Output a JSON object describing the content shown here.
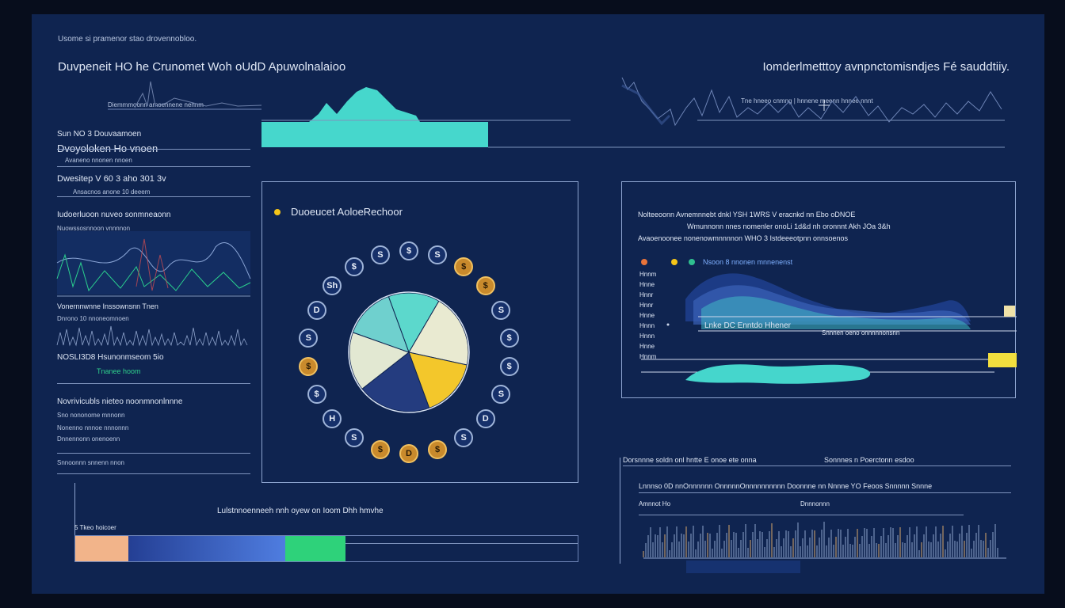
{
  "header": {
    "caption": "Usome si pramenor stao drovennobloo.",
    "title_left": "Duvpeneit HO he Crunomet Woh oUdD Apuwolnalaioo",
    "title_right": "Iomderlmetttoy avnpnctomisndjes Fé sauddtiiy.",
    "mini_labels_left": "Diemmmoonn amoennene nennm",
    "mini_labels_right": "Tne hneeo cnmng   |   hnnene meenn hnnee nnnt"
  },
  "sidebar": {
    "items": [
      {
        "label": "Sun  NO 3  Douvaamoen",
        "accent": "#4a8cd9"
      },
      {
        "label": "Dvoyoloken Ho vnoen"
      },
      {
        "label": "Avaneno nnonen nnoen"
      },
      {
        "label": "Dwesitep V 60 3 aho 301 3v"
      },
      {
        "label": "Ansacnos anone 10 deeem"
      },
      {
        "label": "Iudoerluoon nuveo sonmneaonn"
      },
      {
        "label": "Nuowssosnnoon vnnnnon"
      },
      {
        "label": "Vonernnwnne Inssownsnn Tnen"
      },
      {
        "label": "Dnrono 10 nnoneomnoen"
      },
      {
        "label": "NOSLI3D8 Hsunonmseom 5io"
      },
      {
        "label": "Tnanee hoom"
      },
      {
        "label": "Novrivicubls nieteo noonmnonlnnne"
      },
      {
        "label": "Sno nononome mnnonn"
      },
      {
        "label": "Nonenno nnnoe nnnonnn"
      },
      {
        "label": "Dnnennonn  onenoenn"
      },
      {
        "label": "Snnoonnn snnenn nnon"
      }
    ]
  },
  "pie_panel": {
    "legend": "Duoeucet AoloeRechoor",
    "legend_color": "#f5c518",
    "coins": [
      "$",
      "S",
      "$",
      "$",
      "S",
      "$",
      "$",
      "S",
      "D",
      "S",
      "$",
      "D",
      "$",
      "S",
      "H",
      "$",
      "$",
      "S",
      "D",
      "Sh",
      "$",
      "S"
    ]
  },
  "chart_data": [
    {
      "type": "pie",
      "title": "",
      "values": [
        14,
        20,
        16,
        20,
        16,
        14
      ],
      "colors": [
        "#5cd8cc",
        "#e9ead1",
        "#f3c72b",
        "#243c7f",
        "#e2e8d2",
        "#6fd0ce"
      ],
      "series": [
        {
          "name": "",
          "values": [
            14,
            20,
            16,
            20,
            16,
            14
          ]
        }
      ]
    }
  ],
  "right_panel": {
    "line1": "Nolteeoonn  Avnemnnebt dnkl YSH 1WRS V eracnkd nn Ebo oDNOE",
    "line2": "Wmunnonn nnes nomenler onoLi 1d&d nh oronnnt Akh JOa 3&h",
    "line3": "Avaoenoonee  nonenowmnnnnon WHO  3  Istdeeeotpnn onnsoenos",
    "legend_label": "Nsoon 8 nnonen  mnnenenst",
    "chart_label": "Lnke  DC  Enntdo Hhener",
    "chart_sub": "Snnnen oeno onnnnnonsnn",
    "yticks": [
      "Hnnm",
      "Hnne",
      "Hnnr",
      "Hnnr",
      "Hnne",
      "Hnnn",
      "Hnnn",
      "Hnne",
      "Hnnm"
    ],
    "dots": [
      "#e8743b",
      "#f5c518",
      "#2fbf8f"
    ]
  },
  "bottom_left": {
    "title": "Lulstnnoenneeh nnh oyew on Ioom Dhh hmvhe",
    "label": "5 Tkeo hoicoer",
    "segments": [
      "#f2b48a",
      "#4f7de0",
      "#2ed27a"
    ]
  },
  "bottom_right": {
    "header_left": "Dorsnnne soldn onl hntte E onoe ete onna",
    "header_right": "Sonnnes n  Poerctonn esdoo",
    "row1": "Lnnnso   0D   nnOnnnnnn   OnnnnnOnnnnnnnnnn   Doonnne nn  Nnnne  YO  Feoos Snnnnn  Snnne",
    "row2_left": "Amnnot   Ho",
    "row2_right": "Dnnnonnn"
  }
}
